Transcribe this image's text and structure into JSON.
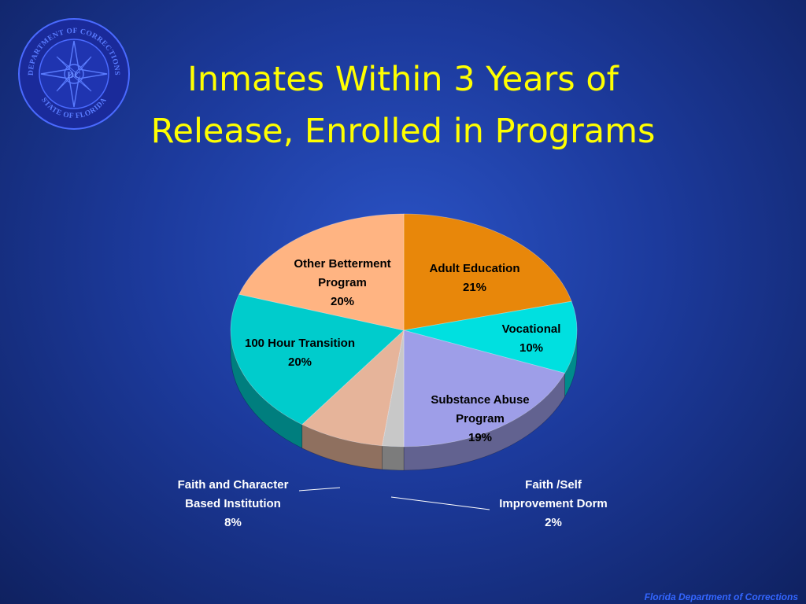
{
  "slide": {
    "title_line1": "Inmates Within 3 Years of",
    "title_line2": "Release, Enrolled in Programs",
    "footer": "Florida Department of Corrections"
  },
  "seal": {
    "text_top": "DEPARTMENT OF CORRECTIONS",
    "text_bottom": "STATE OF FLORIDA",
    "monogram": "DC"
  },
  "colors": {
    "title": "#ffff00",
    "background": "#1c3a9c",
    "footer": "#3366ff"
  },
  "chart_data": {
    "type": "pie",
    "title": "Inmates Within 3 Years of Release, Enrolled in Programs",
    "style": "3d",
    "slices": [
      {
        "label": "Adult Education",
        "value": 21,
        "value_label": "21%",
        "color": "#e8870a",
        "lines": [
          "Adult Education",
          "21%"
        ]
      },
      {
        "label": "Vocational",
        "value": 10,
        "value_label": "10%",
        "color": "#00e0e0",
        "lines": [
          "Vocational",
          "10%"
        ]
      },
      {
        "label": "Substance Abuse Program",
        "value": 19,
        "value_label": "19%",
        "color": "#9e9ee8",
        "lines": [
          "Substance Abuse",
          "Program",
          "19%"
        ]
      },
      {
        "label": "Faith /Self Improvement Dorm",
        "value": 2,
        "value_label": "2%",
        "color": "#c8c8c8",
        "lines": [
          "Faith /Self",
          "Improvement Dorm",
          "2%"
        ]
      },
      {
        "label": "Faith and Character Based Institution",
        "value": 8,
        "value_label": "8%",
        "color": "#e6b49a",
        "lines": [
          "Faith and Character",
          "Based Institution",
          "8%"
        ]
      },
      {
        "label": "100 Hour Transition",
        "value": 20,
        "value_label": "20%",
        "color": "#00cccc",
        "lines": [
          "100 Hour Transition",
          "20%"
        ]
      },
      {
        "label": "Other Betterment Program",
        "value": 20,
        "value_label": "20%",
        "color": "#ffb482",
        "lines": [
          "Other Betterment",
          "Program",
          "20%"
        ]
      }
    ]
  }
}
